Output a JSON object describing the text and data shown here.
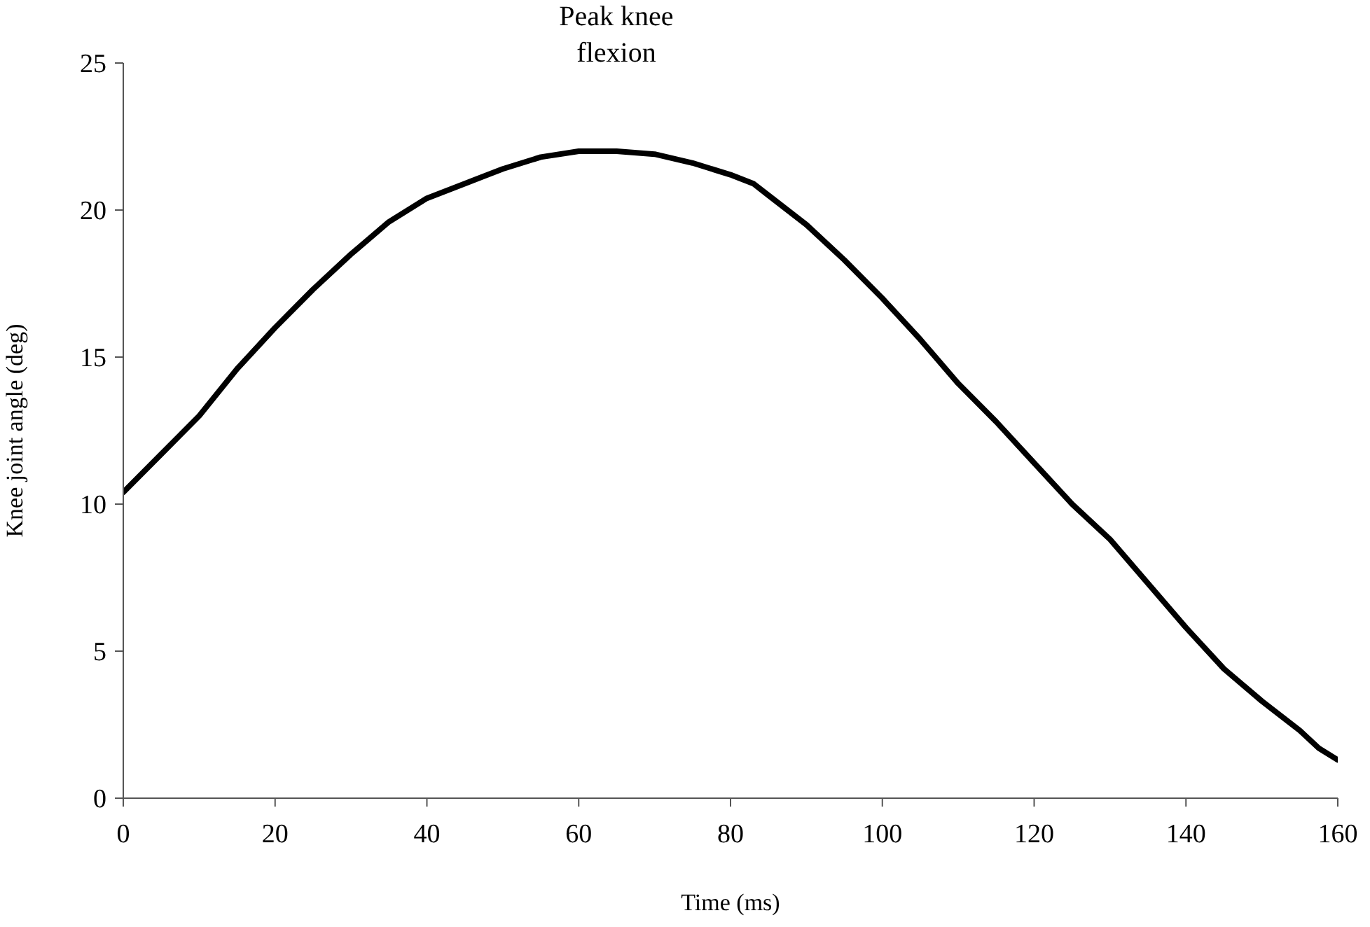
{
  "chart_data": {
    "type": "line",
    "xlabel": "Time (ms)",
    "ylabel": "Knee joint angle (deg)",
    "annotations": [
      "Peak knee flexion"
    ],
    "x": [
      0,
      5,
      10,
      15,
      20,
      25,
      30,
      35,
      40,
      45,
      50,
      55,
      60,
      65,
      70,
      75,
      80,
      83,
      85,
      90,
      95,
      100,
      105,
      110,
      115,
      120,
      125,
      130,
      135,
      140,
      145,
      150,
      155,
      157.5,
      160
    ],
    "series": [
      {
        "color": "#000000",
        "values": [
          10.4,
          11.7,
          13.0,
          14.6,
          16.0,
          17.3,
          18.5,
          19.6,
          20.4,
          20.9,
          21.4,
          21.8,
          22.0,
          22.0,
          21.9,
          21.6,
          21.2,
          20.9,
          20.5,
          19.5,
          18.3,
          17.0,
          15.6,
          14.1,
          12.8,
          11.4,
          10.0,
          8.8,
          7.3,
          5.8,
          4.4,
          3.3,
          2.3,
          1.7,
          1.3
        ]
      }
    ],
    "xlim": [
      0,
      160
    ],
    "xticks": [
      0,
      20,
      40,
      60,
      80,
      100,
      120,
      140,
      160
    ],
    "ylim": [
      0,
      25
    ],
    "yticks": [
      0,
      5,
      10,
      15,
      20,
      25
    ],
    "grid": false,
    "marker": "none",
    "line_style": "solid"
  }
}
